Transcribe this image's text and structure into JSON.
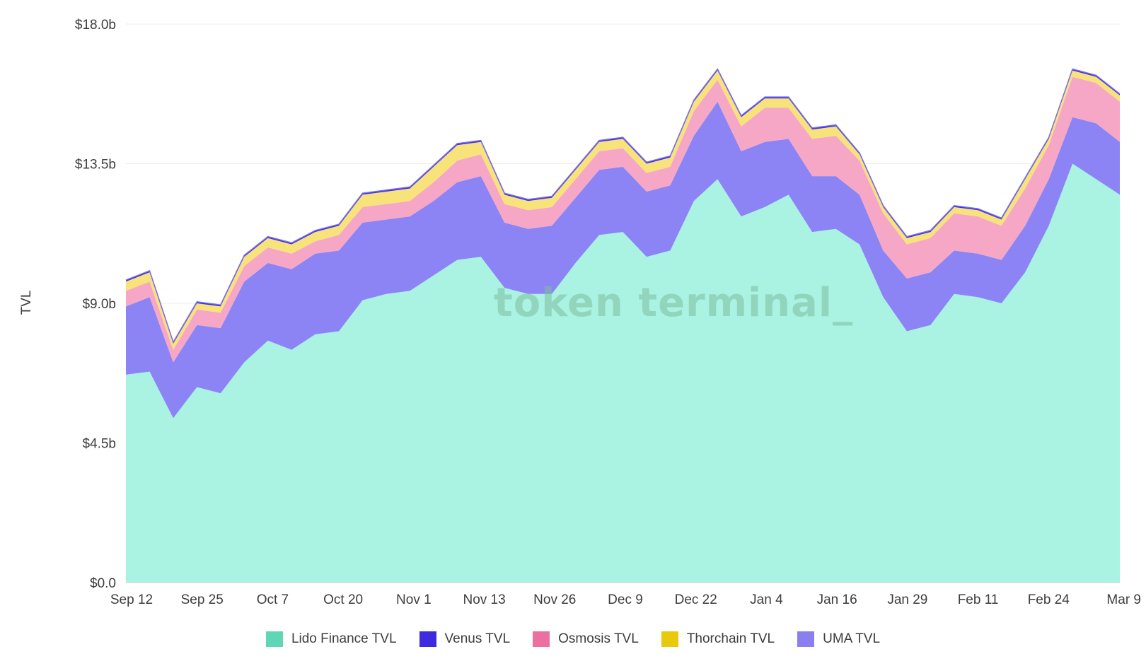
{
  "chart_data": {
    "type": "area",
    "stacked": true,
    "ylabel": "TVL",
    "ylim": [
      0,
      18
    ],
    "yticks": [
      "$0.0",
      "$4.5b",
      "$9.0b",
      "$13.5b",
      "$18.0b"
    ],
    "ytick_values": [
      0,
      4.5,
      9,
      13.5,
      18
    ],
    "xticks": [
      "Sep 12",
      "Sep 25",
      "Oct 7",
      "Oct 20",
      "Nov 1",
      "Nov 13",
      "Nov 26",
      "Dec 9",
      "Dec 22",
      "Jan 4",
      "Jan 16",
      "Jan 29",
      "Feb 11",
      "Feb 24",
      "Mar 9"
    ],
    "grid": true,
    "legend_position": "bottom",
    "watermark": "token terminal_",
    "colors": {
      "Lido Finance TVL": "#aaf2e2",
      "Venus TVL": "#3d2ee0",
      "Osmosis TVL": "#f6a7c6",
      "Thorchain TVL": "#f7e37a",
      "UMA TVL": "#8c84f5"
    },
    "legend_colors": {
      "Lido Finance TVL": "#5fd6b5",
      "Venus TVL": "#3f2ae0",
      "Osmosis TVL": "#ec6f9f",
      "Thorchain TVL": "#e9c90b",
      "UMA TVL": "#8a7ff0"
    },
    "x": [
      "Sep 12",
      "Sep 16",
      "Sep 20",
      "Sep 25",
      "Sep 29",
      "Oct 3",
      "Oct 7",
      "Oct 11",
      "Oct 16",
      "Oct 20",
      "Oct 24",
      "Oct 28",
      "Nov 1",
      "Nov 5",
      "Nov 9",
      "Nov 13",
      "Nov 17",
      "Nov 22",
      "Nov 26",
      "Nov 30",
      "Dec 5",
      "Dec 9",
      "Dec 13",
      "Dec 18",
      "Dec 22",
      "Dec 26",
      "Dec 31",
      "Jan 4",
      "Jan 8",
      "Jan 12",
      "Jan 16",
      "Jan 20",
      "Jan 25",
      "Jan 29",
      "Feb 2",
      "Feb 7",
      "Feb 11",
      "Feb 15",
      "Feb 20",
      "Feb 24",
      "Feb 28",
      "Mar 5",
      "Mar 9"
    ],
    "series": [
      {
        "name": "Lido Finance TVL",
        "values": [
          6.7,
          6.8,
          5.3,
          6.3,
          6.1,
          7.1,
          7.8,
          7.5,
          8.0,
          8.1,
          9.1,
          9.3,
          9.4,
          9.9,
          10.4,
          10.5,
          9.5,
          9.3,
          9.3,
          10.3,
          11.2,
          11.3,
          10.5,
          10.7,
          12.3,
          13.0,
          11.8,
          12.1,
          12.5,
          11.3,
          11.4,
          10.9,
          9.2,
          8.1,
          8.3,
          9.3,
          9.2,
          9.0,
          10.0,
          11.5,
          13.5,
          13.0,
          12.5
        ]
      },
      {
        "name": "UMA TVL",
        "values": [
          2.2,
          2.4,
          1.8,
          2.0,
          2.1,
          2.6,
          2.5,
          2.6,
          2.6,
          2.6,
          2.5,
          2.4,
          2.4,
          2.4,
          2.5,
          2.6,
          2.1,
          2.1,
          2.2,
          2.1,
          2.1,
          2.1,
          2.1,
          2.1,
          2.1,
          2.5,
          2.1,
          2.1,
          1.8,
          1.8,
          1.7,
          1.6,
          1.5,
          1.7,
          1.7,
          1.4,
          1.4,
          1.4,
          1.5,
          1.5,
          1.5,
          1.8,
          1.7
        ]
      },
      {
        "name": "Osmosis TVL",
        "values": [
          0.5,
          0.5,
          0.4,
          0.5,
          0.5,
          0.5,
          0.5,
          0.5,
          0.4,
          0.5,
          0.5,
          0.5,
          0.5,
          0.6,
          0.7,
          0.7,
          0.6,
          0.6,
          0.6,
          0.6,
          0.6,
          0.6,
          0.6,
          0.6,
          0.8,
          0.7,
          0.8,
          1.1,
          1.0,
          1.2,
          1.3,
          1.1,
          1.2,
          1.1,
          1.1,
          1.2,
          1.2,
          1.1,
          1.2,
          1.1,
          1.3,
          1.3,
          1.3
        ]
      },
      {
        "name": "Thorchain TVL",
        "values": [
          0.3,
          0.3,
          0.2,
          0.2,
          0.2,
          0.3,
          0.3,
          0.3,
          0.3,
          0.3,
          0.4,
          0.4,
          0.4,
          0.5,
          0.5,
          0.4,
          0.3,
          0.3,
          0.3,
          0.3,
          0.3,
          0.3,
          0.3,
          0.3,
          0.3,
          0.3,
          0.3,
          0.3,
          0.3,
          0.3,
          0.3,
          0.2,
          0.2,
          0.2,
          0.2,
          0.2,
          0.2,
          0.2,
          0.3,
          0.2,
          0.2,
          0.2,
          0.2
        ]
      },
      {
        "name": "Venus TVL",
        "values": [
          0.05,
          0.05,
          0.05,
          0.05,
          0.05,
          0.05,
          0.05,
          0.05,
          0.05,
          0.05,
          0.05,
          0.05,
          0.05,
          0.05,
          0.05,
          0.05,
          0.05,
          0.05,
          0.05,
          0.05,
          0.05,
          0.05,
          0.05,
          0.05,
          0.05,
          0.05,
          0.05,
          0.05,
          0.05,
          0.05,
          0.05,
          0.05,
          0.05,
          0.05,
          0.05,
          0.05,
          0.05,
          0.05,
          0.05,
          0.05,
          0.05,
          0.05,
          0.05
        ]
      }
    ],
    "legend_order": [
      "Lido Finance TVL",
      "Venus TVL",
      "Osmosis TVL",
      "Thorchain TVL",
      "UMA TVL"
    ]
  }
}
